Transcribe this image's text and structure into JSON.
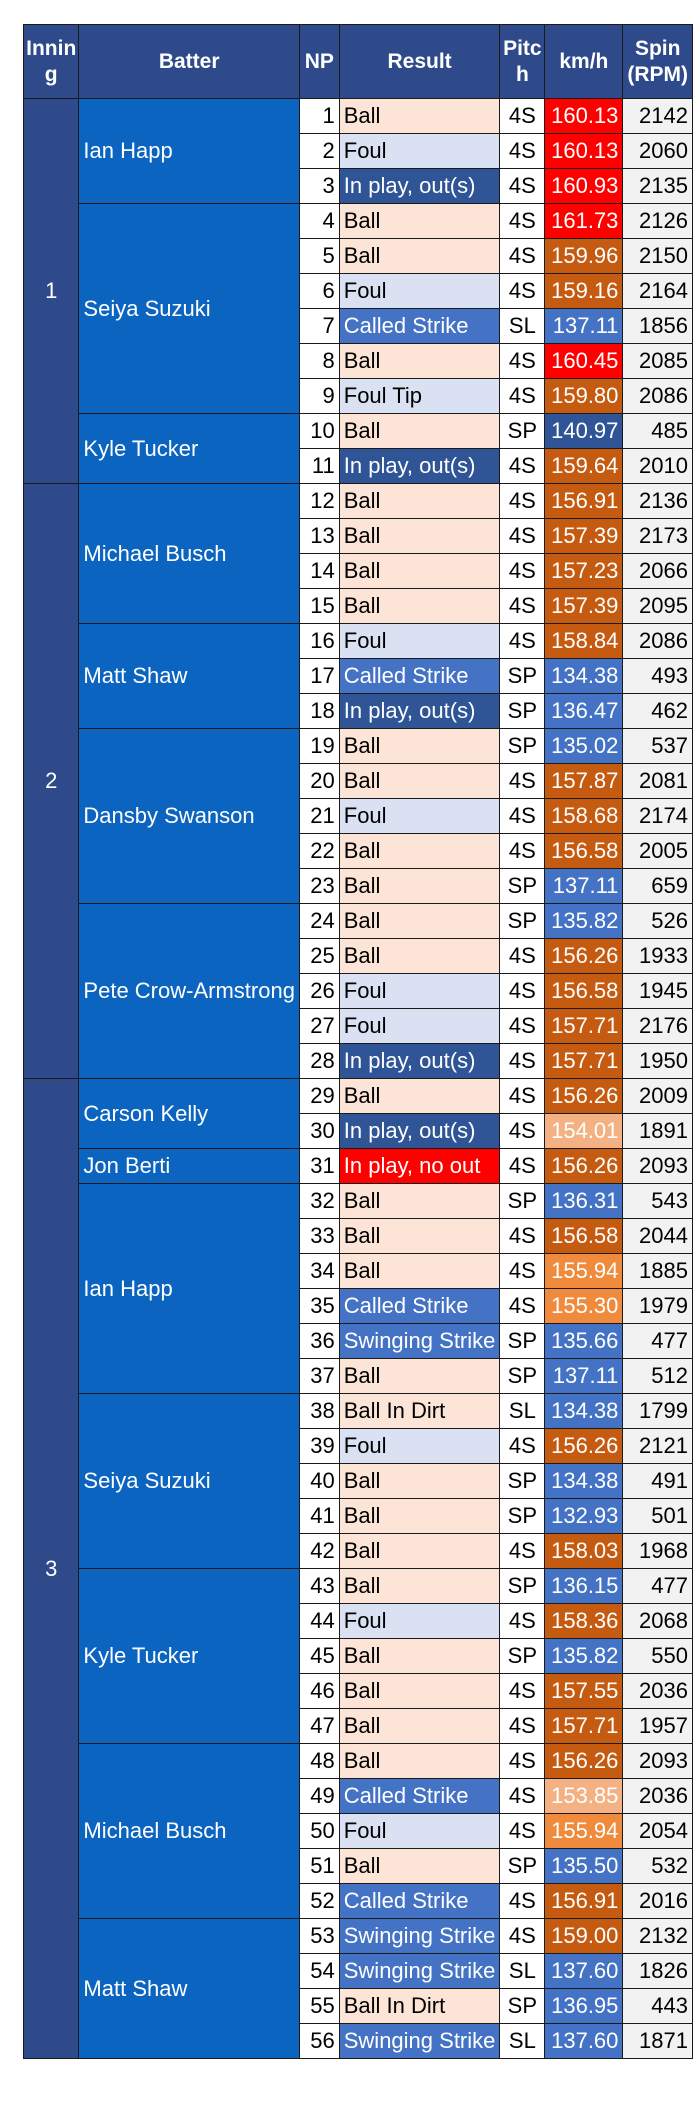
{
  "headers": {
    "inning": "Innin g",
    "batter": "Batter",
    "np": "NP",
    "result": "Result",
    "pitch": "Pitc h",
    "kmh": "km/h",
    "spin": "Spin (RPM)"
  },
  "colors": {
    "header_bg": "#2e4a8b",
    "batter_bg": "#0b64c0",
    "result_ball": "#fce4d6",
    "result_foul": "#d9e1f2",
    "result_strike": "#4472c4",
    "result_inplay_out": "#2f5597",
    "result_inplay_noout": "#ff0000",
    "speed_red": "#ff0000",
    "speed_orange_dark": "#c55a11",
    "speed_orange_light": "#f4b183",
    "speed_orange_mid": "#f08a3c",
    "speed_blue": "#4472c4",
    "speed_blue_dark": "#2f5597"
  },
  "innings": [
    {
      "label": "1",
      "batters": [
        {
          "name": "Ian Happ",
          "pitches": [
            {
              "np": "1",
              "result": "Ball",
              "pitch": "4S",
              "kmh": "160.13",
              "spin": "2142"
            },
            {
              "np": "2",
              "result": "Foul",
              "pitch": "4S",
              "kmh": "160.13",
              "spin": "2060"
            },
            {
              "np": "3",
              "result": "In play, out(s)",
              "pitch": "4S",
              "kmh": "160.93",
              "spin": "2135"
            }
          ]
        },
        {
          "name": "Seiya Suzuki",
          "pitches": [
            {
              "np": "4",
              "result": "Ball",
              "pitch": "4S",
              "kmh": "161.73",
              "spin": "2126"
            },
            {
              "np": "5",
              "result": "Ball",
              "pitch": "4S",
              "kmh": "159.96",
              "spin": "2150"
            },
            {
              "np": "6",
              "result": "Foul",
              "pitch": "4S",
              "kmh": "159.16",
              "spin": "2164"
            },
            {
              "np": "7",
              "result": "Called Strike",
              "pitch": "SL",
              "kmh": "137.11",
              "spin": "1856"
            },
            {
              "np": "8",
              "result": "Ball",
              "pitch": "4S",
              "kmh": "160.45",
              "spin": "2085"
            },
            {
              "np": "9",
              "result": "Foul Tip",
              "pitch": "4S",
              "kmh": "159.80",
              "spin": "2086"
            }
          ]
        },
        {
          "name": "Kyle Tucker",
          "pitches": [
            {
              "np": "10",
              "result": "Ball",
              "pitch": "SP",
              "kmh": "140.97",
              "spin": "485"
            },
            {
              "np": "11",
              "result": "In play, out(s)",
              "pitch": "4S",
              "kmh": "159.64",
              "spin": "2010"
            }
          ]
        }
      ]
    },
    {
      "label": "2",
      "batters": [
        {
          "name": "Michael Busch",
          "pitches": [
            {
              "np": "12",
              "result": "Ball",
              "pitch": "4S",
              "kmh": "156.91",
              "spin": "2136"
            },
            {
              "np": "13",
              "result": "Ball",
              "pitch": "4S",
              "kmh": "157.39",
              "spin": "2173"
            },
            {
              "np": "14",
              "result": "Ball",
              "pitch": "4S",
              "kmh": "157.23",
              "spin": "2066"
            },
            {
              "np": "15",
              "result": "Ball",
              "pitch": "4S",
              "kmh": "157.39",
              "spin": "2095"
            }
          ]
        },
        {
          "name": "Matt Shaw",
          "pitches": [
            {
              "np": "16",
              "result": "Foul",
              "pitch": "4S",
              "kmh": "158.84",
              "spin": "2086"
            },
            {
              "np": "17",
              "result": "Called Strike",
              "pitch": "SP",
              "kmh": "134.38",
              "spin": "493"
            },
            {
              "np": "18",
              "result": "In play, out(s)",
              "pitch": "SP",
              "kmh": "136.47",
              "spin": "462"
            }
          ]
        },
        {
          "name": "Dansby Swanson",
          "pitches": [
            {
              "np": "19",
              "result": "Ball",
              "pitch": "SP",
              "kmh": "135.02",
              "spin": "537"
            },
            {
              "np": "20",
              "result": "Ball",
              "pitch": "4S",
              "kmh": "157.87",
              "spin": "2081"
            },
            {
              "np": "21",
              "result": "Foul",
              "pitch": "4S",
              "kmh": "158.68",
              "spin": "2174"
            },
            {
              "np": "22",
              "result": "Ball",
              "pitch": "4S",
              "kmh": "156.58",
              "spin": "2005"
            },
            {
              "np": "23",
              "result": "Ball",
              "pitch": "SP",
              "kmh": "137.11",
              "spin": "659"
            }
          ]
        },
        {
          "name": "Pete Crow-Armstrong",
          "pitches": [
            {
              "np": "24",
              "result": "Ball",
              "pitch": "SP",
              "kmh": "135.82",
              "spin": "526"
            },
            {
              "np": "25",
              "result": "Ball",
              "pitch": "4S",
              "kmh": "156.26",
              "spin": "1933"
            },
            {
              "np": "26",
              "result": "Foul",
              "pitch": "4S",
              "kmh": "156.58",
              "spin": "1945"
            },
            {
              "np": "27",
              "result": "Foul",
              "pitch": "4S",
              "kmh": "157.71",
              "spin": "2176"
            },
            {
              "np": "28",
              "result": "In play, out(s)",
              "pitch": "4S",
              "kmh": "157.71",
              "spin": "1950"
            }
          ]
        }
      ]
    },
    {
      "label": "3",
      "batters": [
        {
          "name": "Carson Kelly",
          "pitches": [
            {
              "np": "29",
              "result": "Ball",
              "pitch": "4S",
              "kmh": "156.26",
              "spin": "2009"
            },
            {
              "np": "30",
              "result": "In play, out(s)",
              "pitch": "4S",
              "kmh": "154.01",
              "spin": "1891"
            }
          ]
        },
        {
          "name": "Jon Berti",
          "pitches": [
            {
              "np": "31",
              "result": "In play, no out",
              "pitch": "4S",
              "kmh": "156.26",
              "spin": "2093"
            }
          ]
        },
        {
          "name": "Ian Happ",
          "pitches": [
            {
              "np": "32",
              "result": "Ball",
              "pitch": "SP",
              "kmh": "136.31",
              "spin": "543"
            },
            {
              "np": "33",
              "result": "Ball",
              "pitch": "4S",
              "kmh": "156.58",
              "spin": "2044"
            },
            {
              "np": "34",
              "result": "Ball",
              "pitch": "4S",
              "kmh": "155.94",
              "spin": "1885"
            },
            {
              "np": "35",
              "result": "Called Strike",
              "pitch": "4S",
              "kmh": "155.30",
              "spin": "1979"
            },
            {
              "np": "36",
              "result": "Swinging Strike",
              "pitch": "SP",
              "kmh": "135.66",
              "spin": "477"
            },
            {
              "np": "37",
              "result": "Ball",
              "pitch": "SP",
              "kmh": "137.11",
              "spin": "512"
            }
          ]
        },
        {
          "name": "Seiya Suzuki",
          "pitches": [
            {
              "np": "38",
              "result": "Ball In Dirt",
              "pitch": "SL",
              "kmh": "134.38",
              "spin": "1799"
            },
            {
              "np": "39",
              "result": "Foul",
              "pitch": "4S",
              "kmh": "156.26",
              "spin": "2121"
            },
            {
              "np": "40",
              "result": "Ball",
              "pitch": "SP",
              "kmh": "134.38",
              "spin": "491"
            },
            {
              "np": "41",
              "result": "Ball",
              "pitch": "SP",
              "kmh": "132.93",
              "spin": "501"
            },
            {
              "np": "42",
              "result": "Ball",
              "pitch": "4S",
              "kmh": "158.03",
              "spin": "1968"
            }
          ]
        },
        {
          "name": "Kyle Tucker",
          "pitches": [
            {
              "np": "43",
              "result": "Ball",
              "pitch": "SP",
              "kmh": "136.15",
              "spin": "477"
            },
            {
              "np": "44",
              "result": "Foul",
              "pitch": "4S",
              "kmh": "158.36",
              "spin": "2068"
            },
            {
              "np": "45",
              "result": "Ball",
              "pitch": "SP",
              "kmh": "135.82",
              "spin": "550"
            },
            {
              "np": "46",
              "result": "Ball",
              "pitch": "4S",
              "kmh": "157.55",
              "spin": "2036"
            },
            {
              "np": "47",
              "result": "Ball",
              "pitch": "4S",
              "kmh": "157.71",
              "spin": "1957"
            }
          ]
        },
        {
          "name": "Michael Busch",
          "pitches": [
            {
              "np": "48",
              "result": "Ball",
              "pitch": "4S",
              "kmh": "156.26",
              "spin": "2093"
            },
            {
              "np": "49",
              "result": "Called Strike",
              "pitch": "4S",
              "kmh": "153.85",
              "spin": "2036"
            },
            {
              "np": "50",
              "result": "Foul",
              "pitch": "4S",
              "kmh": "155.94",
              "spin": "2054"
            },
            {
              "np": "51",
              "result": "Ball",
              "pitch": "SP",
              "kmh": "135.50",
              "spin": "532"
            },
            {
              "np": "52",
              "result": "Called Strike",
              "pitch": "4S",
              "kmh": "156.91",
              "spin": "2016"
            }
          ]
        },
        {
          "name": "Matt Shaw",
          "pitches": [
            {
              "np": "53",
              "result": "Swinging Strike",
              "pitch": "4S",
              "kmh": "159.00",
              "spin": "2132"
            },
            {
              "np": "54",
              "result": "Swinging Strike",
              "pitch": "SL",
              "kmh": "137.60",
              "spin": "1826"
            },
            {
              "np": "55",
              "result": "Ball In Dirt",
              "pitch": "SP",
              "kmh": "136.95",
              "spin": "443"
            },
            {
              "np": "56",
              "result": "Swinging Strike",
              "pitch": "SL",
              "kmh": "137.60",
              "spin": "1871"
            }
          ]
        }
      ]
    }
  ]
}
